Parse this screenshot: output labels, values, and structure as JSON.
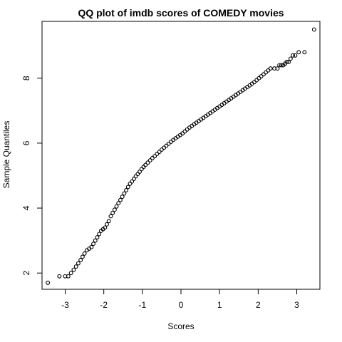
{
  "chart_data": {
    "type": "scatter",
    "title": "QQ plot of imdb scores of COMEDY movies",
    "xlabel": "Scores",
    "ylabel": "Sample Quantiles",
    "xlim": [
      -3.6,
      3.6
    ],
    "ylim": [
      1.5,
      9.75
    ],
    "x_ticks": [
      -3,
      -2,
      -1,
      0,
      1,
      2,
      3
    ],
    "y_ticks": [
      2,
      4,
      6,
      8
    ],
    "grid": false,
    "legend": "none",
    "marker": "open-circle",
    "colors": {
      "points": "#000000",
      "axes": "#000000",
      "background": "#ffffff"
    },
    "series": [
      {
        "points": [
          [
            -3.45,
            1.7
          ],
          [
            -3.15,
            1.9
          ],
          [
            -3.0,
            1.9
          ],
          [
            -2.92,
            1.9
          ],
          [
            -2.85,
            2.0
          ],
          [
            -2.78,
            2.1
          ],
          [
            -2.72,
            2.2
          ],
          [
            -2.66,
            2.3
          ],
          [
            -2.6,
            2.4
          ],
          [
            -2.55,
            2.5
          ],
          [
            -2.5,
            2.6
          ],
          [
            -2.44,
            2.7
          ],
          [
            -2.38,
            2.75
          ],
          [
            -2.32,
            2.8
          ],
          [
            -2.27,
            2.9
          ],
          [
            -2.22,
            3.0
          ],
          [
            -2.17,
            3.1
          ],
          [
            -2.12,
            3.2
          ],
          [
            -2.07,
            3.3
          ],
          [
            -2.02,
            3.35
          ],
          [
            -1.97,
            3.4
          ],
          [
            -1.92,
            3.5
          ],
          [
            -1.87,
            3.6
          ],
          [
            -1.82,
            3.75
          ],
          [
            -1.77,
            3.85
          ],
          [
            -1.72,
            3.95
          ],
          [
            -1.67,
            4.05
          ],
          [
            -1.62,
            4.15
          ],
          [
            -1.57,
            4.25
          ],
          [
            -1.52,
            4.35
          ],
          [
            -1.47,
            4.45
          ],
          [
            -1.42,
            4.55
          ],
          [
            -1.37,
            4.65
          ],
          [
            -1.32,
            4.75
          ],
          [
            -1.27,
            4.82
          ],
          [
            -1.22,
            4.9
          ],
          [
            -1.17,
            4.98
          ],
          [
            -1.12,
            5.05
          ],
          [
            -1.07,
            5.12
          ],
          [
            -1.02,
            5.2
          ],
          [
            -0.97,
            5.27
          ],
          [
            -0.92,
            5.33
          ],
          [
            -0.86,
            5.4
          ],
          [
            -0.8,
            5.47
          ],
          [
            -0.74,
            5.54
          ],
          [
            -0.68,
            5.6
          ],
          [
            -0.62,
            5.67
          ],
          [
            -0.56,
            5.73
          ],
          [
            -0.5,
            5.8
          ],
          [
            -0.44,
            5.86
          ],
          [
            -0.38,
            5.92
          ],
          [
            -0.32,
            5.98
          ],
          [
            -0.26,
            6.04
          ],
          [
            -0.2,
            6.1
          ],
          [
            -0.14,
            6.15
          ],
          [
            -0.08,
            6.2
          ],
          [
            -0.02,
            6.25
          ],
          [
            0.04,
            6.3
          ],
          [
            0.1,
            6.36
          ],
          [
            0.16,
            6.42
          ],
          [
            0.22,
            6.48
          ],
          [
            0.28,
            6.53
          ],
          [
            0.34,
            6.58
          ],
          [
            0.4,
            6.63
          ],
          [
            0.46,
            6.68
          ],
          [
            0.52,
            6.73
          ],
          [
            0.58,
            6.78
          ],
          [
            0.64,
            6.83
          ],
          [
            0.7,
            6.88
          ],
          [
            0.76,
            6.93
          ],
          [
            0.82,
            6.98
          ],
          [
            0.88,
            7.03
          ],
          [
            0.94,
            7.08
          ],
          [
            1.0,
            7.13
          ],
          [
            1.06,
            7.18
          ],
          [
            1.12,
            7.23
          ],
          [
            1.18,
            7.28
          ],
          [
            1.24,
            7.33
          ],
          [
            1.3,
            7.38
          ],
          [
            1.36,
            7.43
          ],
          [
            1.42,
            7.48
          ],
          [
            1.48,
            7.53
          ],
          [
            1.54,
            7.58
          ],
          [
            1.6,
            7.63
          ],
          [
            1.66,
            7.68
          ],
          [
            1.72,
            7.73
          ],
          [
            1.78,
            7.78
          ],
          [
            1.84,
            7.83
          ],
          [
            1.9,
            7.88
          ],
          [
            1.96,
            7.94
          ],
          [
            2.02,
            8.0
          ],
          [
            2.08,
            8.06
          ],
          [
            2.14,
            8.12
          ],
          [
            2.2,
            8.18
          ],
          [
            2.26,
            8.24
          ],
          [
            2.32,
            8.3
          ],
          [
            2.42,
            8.3
          ],
          [
            2.5,
            8.3
          ],
          [
            2.55,
            8.4
          ],
          [
            2.6,
            8.4
          ],
          [
            2.65,
            8.4
          ],
          [
            2.7,
            8.45
          ],
          [
            2.74,
            8.5
          ],
          [
            2.79,
            8.5
          ],
          [
            2.84,
            8.6
          ],
          [
            2.9,
            8.7
          ],
          [
            2.96,
            8.7
          ],
          [
            3.05,
            8.8
          ],
          [
            3.2,
            8.8
          ],
          [
            3.45,
            9.5
          ]
        ]
      }
    ]
  }
}
